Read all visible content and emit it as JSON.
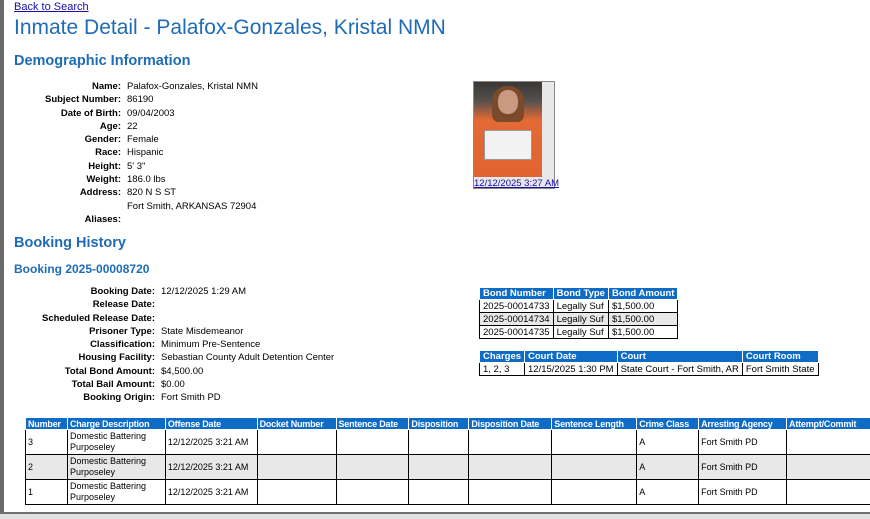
{
  "nav": {
    "back_link": "Back to Search"
  },
  "page_title": "Inmate Detail - Palafox-Gonzales, Kristal NMN",
  "demographic": {
    "heading": "Demographic Information",
    "fields": [
      {
        "label": "Name:",
        "value": "Palafox-Gonzales, Kristal NMN"
      },
      {
        "label": "Subject Number:",
        "value": "86190"
      },
      {
        "label": "Date of Birth:",
        "value": "09/04/2003"
      },
      {
        "label": "Age:",
        "value": "22"
      },
      {
        "label": "Gender:",
        "value": "Female"
      },
      {
        "label": "Race:",
        "value": "Hispanic"
      },
      {
        "label": "Height:",
        "value": "5' 3\""
      },
      {
        "label": "Weight:",
        "value": "186.0 lbs"
      },
      {
        "label": "Address:",
        "value": "820 N S ST",
        "value2": "Fort Smith, ARKANSAS 72904"
      },
      {
        "label": "Aliases:",
        "value": ""
      }
    ],
    "photo_link": "12/12/2025 3:27 AM"
  },
  "booking_history": {
    "heading": "Booking History",
    "booking_title": "Booking 2025-00008720",
    "fields": [
      {
        "label": "Booking Date:",
        "value": "12/12/2025 1:29 AM"
      },
      {
        "label": "Release Date:",
        "value": ""
      },
      {
        "label": "Scheduled Release Date:",
        "value": ""
      },
      {
        "label": "Prisoner Type:",
        "value": "State Misdemeanor"
      },
      {
        "label": "Classification:",
        "value": "Minimum Pre-Sentence"
      },
      {
        "label": "Housing Facility:",
        "value": "Sebastian County Adult Detention Center"
      },
      {
        "label": "Total Bond Amount:",
        "value": "$4,500.00"
      },
      {
        "label": "Total Bail Amount:",
        "value": "$0.00"
      },
      {
        "label": "Booking Origin:",
        "value": "Fort Smith PD"
      }
    ]
  },
  "bonds": {
    "headers": [
      "Bond Number",
      "Bond Type",
      "Bond Amount"
    ],
    "rows": [
      [
        "2025-00014733",
        "Legally Suf",
        "$1,500.00"
      ],
      [
        "2025-00014734",
        "Legally Suf",
        "$1,500.00"
      ],
      [
        "2025-00014735",
        "Legally Suf",
        "$1,500.00"
      ]
    ]
  },
  "court": {
    "headers": [
      "Charges",
      "Court Date",
      "Court",
      "Court Room"
    ],
    "rows": [
      [
        "1, 2, 3",
        "12/15/2025 1:30 PM",
        "State Court - Fort Smith, AR",
        "Fort Smith State"
      ]
    ]
  },
  "charges": {
    "headers": [
      "Number",
      "Charge Description",
      "Offense Date",
      "Docket Number",
      "Sentence Date",
      "Disposition",
      "Disposition Date",
      "Sentence Length",
      "Crime Class",
      "Arresting Agency",
      "Attempt/Commit"
    ],
    "rows": [
      [
        "3",
        "Domestic Battering Purposeley",
        "12/12/2025 3:21 AM",
        "",
        "",
        "",
        "",
        "",
        "A",
        "Fort Smith PD",
        ""
      ],
      [
        "2",
        "Domestic Battering Purposeley",
        "12/12/2025 3:21 AM",
        "",
        "",
        "",
        "",
        "",
        "A",
        "Fort Smith PD",
        ""
      ],
      [
        "1",
        "Domestic Battering Purposeley",
        "12/12/2025 3:21 AM",
        "",
        "",
        "",
        "",
        "",
        "A",
        "Fort Smith PD",
        ""
      ]
    ]
  }
}
